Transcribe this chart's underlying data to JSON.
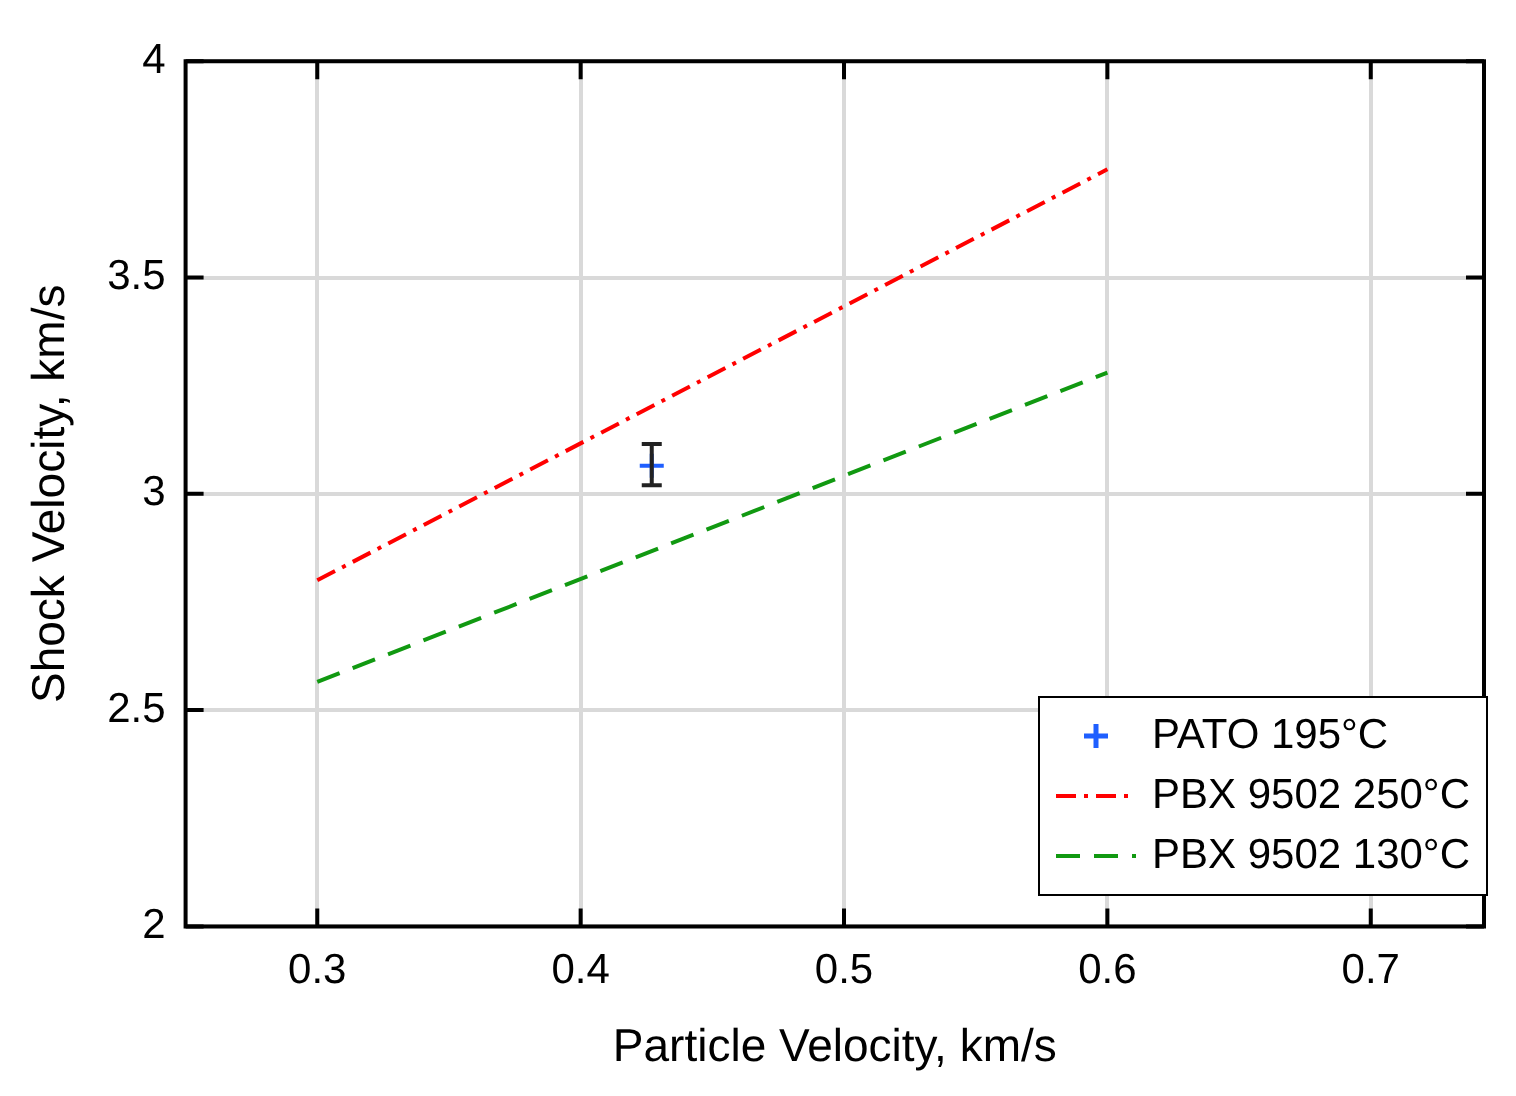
{
  "chart_data": {
    "type": "line",
    "xlabel": "Particle Velocity, km/s",
    "ylabel": "Shock Velocity, km/s",
    "xlim": [
      0.25,
      0.743
    ],
    "xticks": [
      0.3,
      0.4,
      0.5,
      0.6,
      0.7
    ],
    "ylim": [
      2,
      4
    ],
    "yticks": [
      2,
      2.5,
      3,
      3.5,
      4
    ],
    "grid": true,
    "legend": "bottom right",
    "series": [
      {
        "name": "PATO 195°C",
        "type": "scatter",
        "color": "#1f5fff",
        "marker": "cross",
        "x": [
          0.427
        ],
        "values": [
          3.065
        ],
        "errors": [
          [
            3.02,
            3.115
          ]
        ]
      },
      {
        "name": "PBX 9502 250°C",
        "type": "line",
        "color": "#ff0000",
        "line_style": "dashdot",
        "marker": "none",
        "x": [
          0.3,
          0.6
        ],
        "values": [
          2.8,
          3.75
        ]
      },
      {
        "name": "PBX 9502 130°C",
        "type": "line",
        "color": "#119911",
        "line_style": "dashed",
        "marker": "none",
        "x": [
          0.3,
          0.6
        ],
        "values": [
          2.565,
          3.28
        ]
      }
    ]
  }
}
